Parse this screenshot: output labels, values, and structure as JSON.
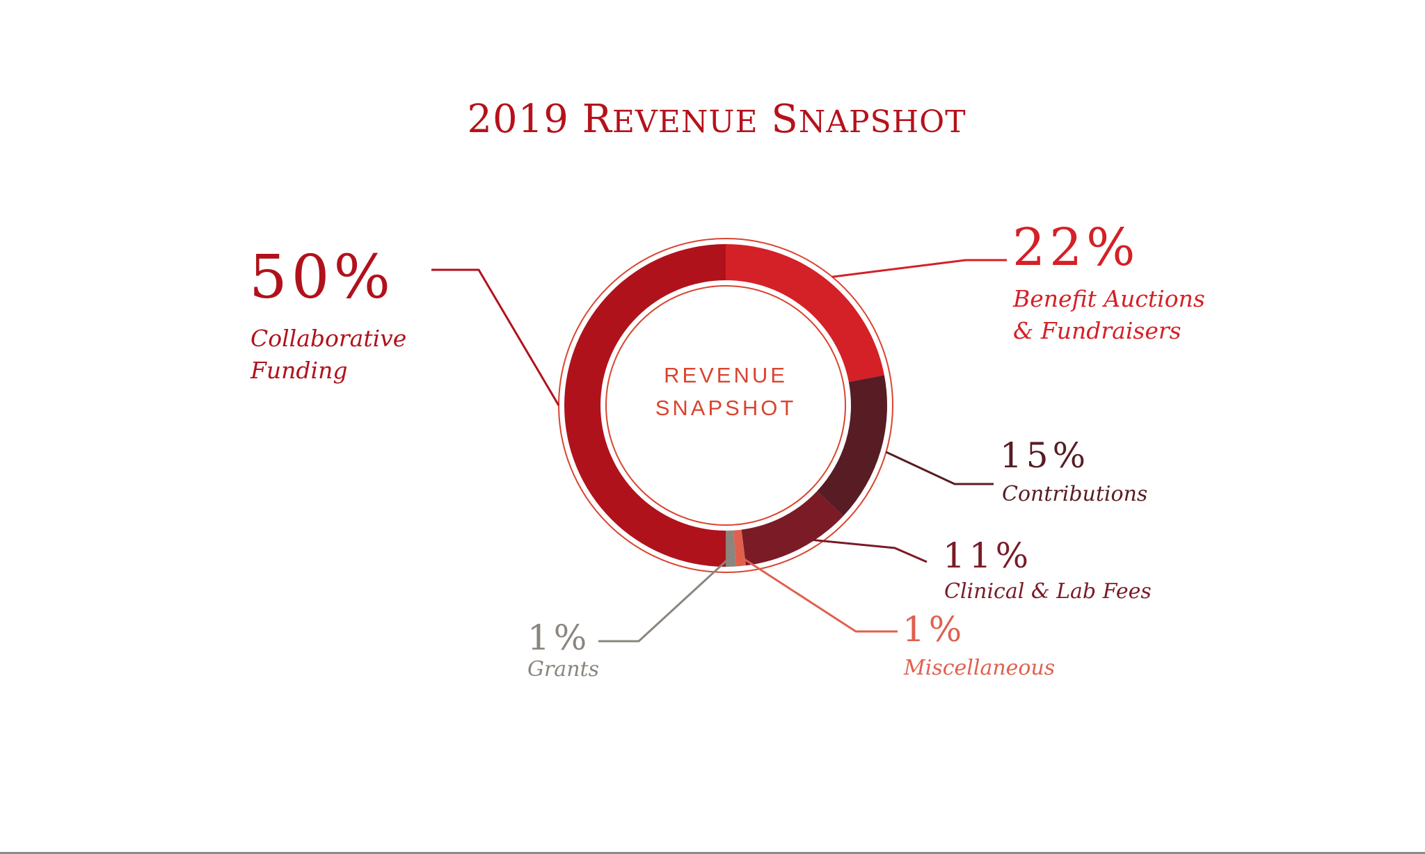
{
  "chart_data": {
    "type": "pie",
    "title": "2019 Revenue Snapshot",
    "center_label": [
      "REVENUE",
      "SNAPSHOT"
    ],
    "slices": [
      {
        "label": "Benefit Auctions & Fundraisers",
        "label_lines": [
          "Benefit Auctions",
          "& Fundraisers"
        ],
        "value": 22,
        "value_label": "22%",
        "color": "#d42027"
      },
      {
        "label": "Contributions",
        "label_lines": [
          "Contributions"
        ],
        "value": 15,
        "value_label": "15%",
        "color": "#571c24"
      },
      {
        "label": "Clinical & Lab Fees",
        "label_lines": [
          "Clinical & Lab Fees"
        ],
        "value": 11,
        "value_label": "11%",
        "color": "#7a1b26"
      },
      {
        "label": "Miscellaneous",
        "label_lines": [
          "Miscellaneous"
        ],
        "value": 1,
        "value_label": "1%",
        "color": "#e0604e"
      },
      {
        "label": "Grants",
        "label_lines": [
          "Grants"
        ],
        "value": 1,
        "value_label": "1%",
        "color": "#8b857e"
      },
      {
        "label": "Collaborative Funding",
        "label_lines": [
          "Collaborative",
          "Funding"
        ],
        "value": 50,
        "value_label": "50%",
        "color": "#b0121b"
      }
    ],
    "colors": {
      "title": "#b5121b",
      "outline": "#d9442f",
      "center_text": "#d9442f"
    }
  }
}
